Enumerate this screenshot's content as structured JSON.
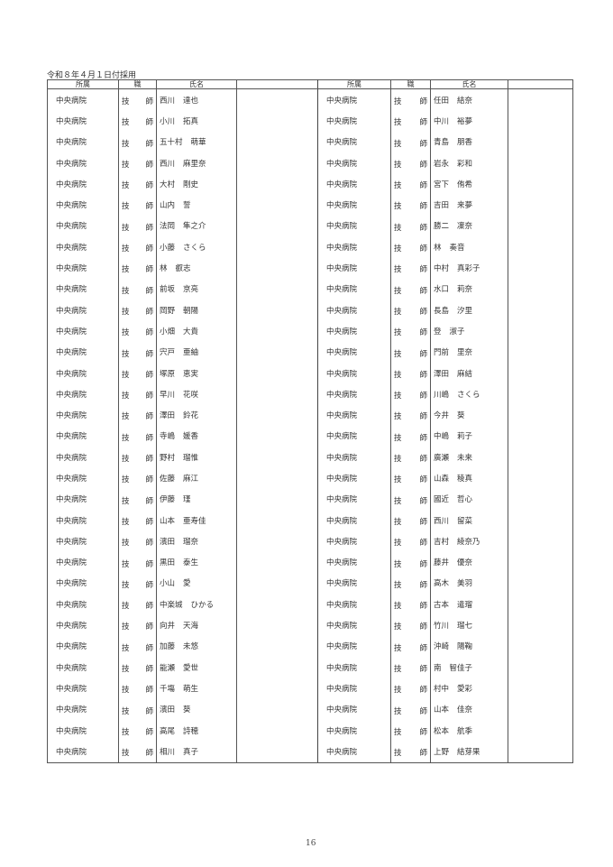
{
  "title": "令和８年４月１日付採用",
  "headers": {
    "affiliation": "所属",
    "position": "職",
    "name": "氏名"
  },
  "position_label": [
    "技",
    "師"
  ],
  "page_number": "16",
  "left": [
    {
      "aff": "中央病院",
      "family": "西川",
      "given": "達也"
    },
    {
      "aff": "中央病院",
      "family": "小川",
      "given": "拓真"
    },
    {
      "aff": "中央病院",
      "family": "五十村",
      "given": "萌華"
    },
    {
      "aff": "中央病院",
      "family": "西川",
      "given": "麻里奈"
    },
    {
      "aff": "中央病院",
      "family": "大村",
      "given": "剛史"
    },
    {
      "aff": "中央病院",
      "family": "山内",
      "given": "誓"
    },
    {
      "aff": "中央病院",
      "family": "法岡",
      "given": "隼之介"
    },
    {
      "aff": "中央病院",
      "family": "小藤",
      "given": "さくら"
    },
    {
      "aff": "中央病院",
      "family": "林",
      "given": "叡志"
    },
    {
      "aff": "中央病院",
      "family": "前坂",
      "given": "京亮"
    },
    {
      "aff": "中央病院",
      "family": "岡野",
      "given": "朝陽"
    },
    {
      "aff": "中央病院",
      "family": "小畑",
      "given": "大貴"
    },
    {
      "aff": "中央病院",
      "family": "宍戸",
      "given": "亜紬"
    },
    {
      "aff": "中央病院",
      "family": "塚原",
      "given": "恵実"
    },
    {
      "aff": "中央病院",
      "family": "早川",
      "given": "花咲"
    },
    {
      "aff": "中央病院",
      "family": "澤田",
      "given": "鈴花"
    },
    {
      "aff": "中央病院",
      "family": "寺嶋",
      "given": "媛香"
    },
    {
      "aff": "中央病院",
      "family": "野村",
      "given": "瑠惟"
    },
    {
      "aff": "中央病院",
      "family": "佐藤",
      "given": "麻江"
    },
    {
      "aff": "中央病院",
      "family": "伊藤",
      "given": "瑾"
    },
    {
      "aff": "中央病院",
      "family": "山本",
      "given": "亜寿佳"
    },
    {
      "aff": "中央病院",
      "family": "濱田",
      "given": "瑠奈"
    },
    {
      "aff": "中央病院",
      "family": "黒田",
      "given": "泰生"
    },
    {
      "aff": "中央病院",
      "family": "小山",
      "given": "愛"
    },
    {
      "aff": "中央病院",
      "family": "中楽城",
      "given": "ひかる"
    },
    {
      "aff": "中央病院",
      "family": "向井",
      "given": "天海"
    },
    {
      "aff": "中央病院",
      "family": "加藤",
      "given": "未悠"
    },
    {
      "aff": "中央病院",
      "family": "能瀬",
      "given": "愛世"
    },
    {
      "aff": "中央病院",
      "family": "千塲",
      "given": "萌生"
    },
    {
      "aff": "中央病院",
      "family": "濱田",
      "given": "葵"
    },
    {
      "aff": "中央病院",
      "family": "高尾",
      "given": "詩穂"
    },
    {
      "aff": "中央病院",
      "family": "相川",
      "given": "真子"
    }
  ],
  "right": [
    {
      "aff": "中央病院",
      "family": "任田",
      "given": "結奈"
    },
    {
      "aff": "中央病院",
      "family": "中川",
      "given": "裕夢"
    },
    {
      "aff": "中央病院",
      "family": "青島",
      "given": "朋香"
    },
    {
      "aff": "中央病院",
      "family": "岩永",
      "given": "彩和"
    },
    {
      "aff": "中央病院",
      "family": "宮下",
      "given": "侑希"
    },
    {
      "aff": "中央病院",
      "family": "吉田",
      "given": "来夢"
    },
    {
      "aff": "中央病院",
      "family": "勝二",
      "given": "凜奈"
    },
    {
      "aff": "中央病院",
      "family": "林",
      "given": "奏音"
    },
    {
      "aff": "中央病院",
      "family": "中村",
      "given": "真彩子"
    },
    {
      "aff": "中央病院",
      "family": "水口",
      "given": "莉奈"
    },
    {
      "aff": "中央病院",
      "family": "長島",
      "given": "汐里"
    },
    {
      "aff": "中央病院",
      "family": "登",
      "given": "淑子"
    },
    {
      "aff": "中央病院",
      "family": "門前",
      "given": "里奈"
    },
    {
      "aff": "中央病院",
      "family": "澤田",
      "given": "麻結"
    },
    {
      "aff": "中央病院",
      "family": "川嶋",
      "given": "さくら"
    },
    {
      "aff": "中央病院",
      "family": "今井",
      "given": "葵"
    },
    {
      "aff": "中央病院",
      "family": "中嶋",
      "given": "莉子"
    },
    {
      "aff": "中央病院",
      "family": "廣瀬",
      "given": "未来"
    },
    {
      "aff": "中央病院",
      "family": "山森",
      "given": "稜真"
    },
    {
      "aff": "中央病院",
      "family": "國近",
      "given": "哲心"
    },
    {
      "aff": "中央病院",
      "family": "西川",
      "given": "留菜"
    },
    {
      "aff": "中央病院",
      "family": "吉村",
      "given": "綾奈乃"
    },
    {
      "aff": "中央病院",
      "family": "藤井",
      "given": "優奈"
    },
    {
      "aff": "中央病院",
      "family": "高木",
      "given": "美羽"
    },
    {
      "aff": "中央病院",
      "family": "古本",
      "given": "遣瑠"
    },
    {
      "aff": "中央病院",
      "family": "竹川",
      "given": "瑠七"
    },
    {
      "aff": "中央病院",
      "family": "沖崎",
      "given": "陽鞠"
    },
    {
      "aff": "中央病院",
      "family": "南",
      "given": "智佳子"
    },
    {
      "aff": "中央病院",
      "family": "村中",
      "given": "愛彩"
    },
    {
      "aff": "中央病院",
      "family": "山本",
      "given": "佳奈"
    },
    {
      "aff": "中央病院",
      "family": "松本",
      "given": "航季"
    },
    {
      "aff": "中央病院",
      "family": "上野",
      "given": "結芽果"
    }
  ]
}
